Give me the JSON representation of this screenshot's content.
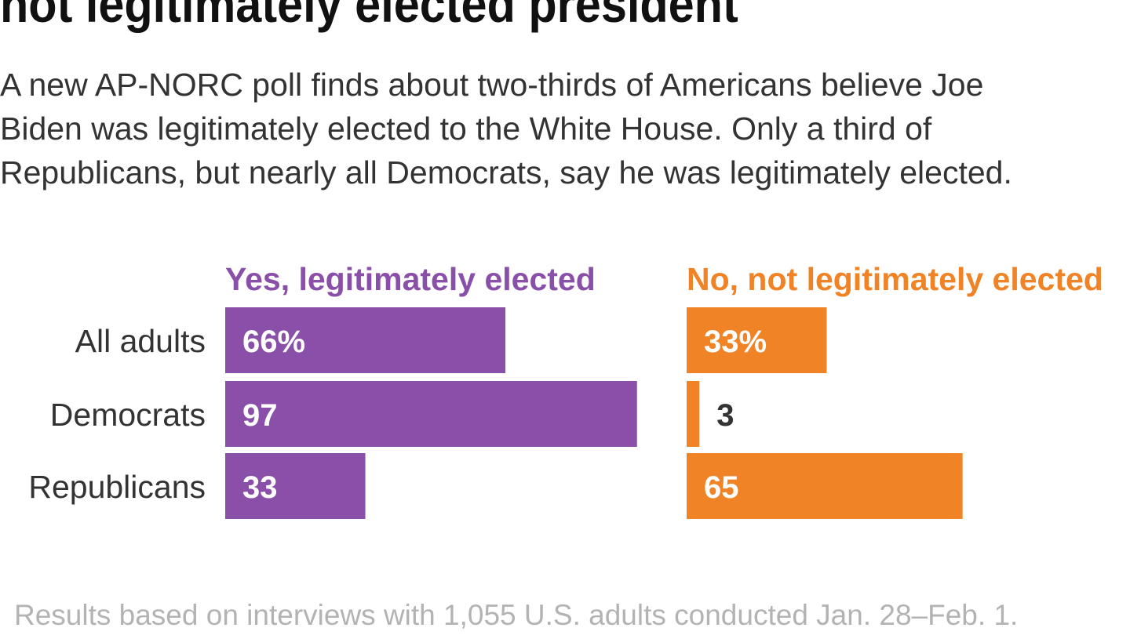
{
  "title": "not legitimately elected president",
  "subtitle": [
    "A new AP-NORC poll finds about two-thirds of Americans believe Joe",
    "Biden was legitimately elected to the White House. Only a third of",
    "Republicans, but nearly all Democrats, say he was legitimately elected."
  ],
  "footnote": "Results based on interviews with 1,055 U.S. adults conducted Jan. 28–Feb. 1.",
  "chart_data": {
    "type": "bar",
    "orientation": "horizontal",
    "title": "",
    "xlabel": "",
    "ylabel": "",
    "categories": [
      "All adults",
      "Democrats",
      "Republicans"
    ],
    "xlim": [
      0,
      100
    ],
    "grid": false,
    "series": [
      {
        "name": "Yes, legitimately elected",
        "color": "#8a4fa8",
        "values": [
          66,
          97,
          33
        ],
        "labels": [
          "66%",
          "97",
          "33"
        ]
      },
      {
        "name": "No, not legitimately elected",
        "color": "#f08326",
        "values": [
          33,
          3,
          65
        ],
        "labels": [
          "33%",
          "3",
          "65"
        ]
      }
    ]
  }
}
